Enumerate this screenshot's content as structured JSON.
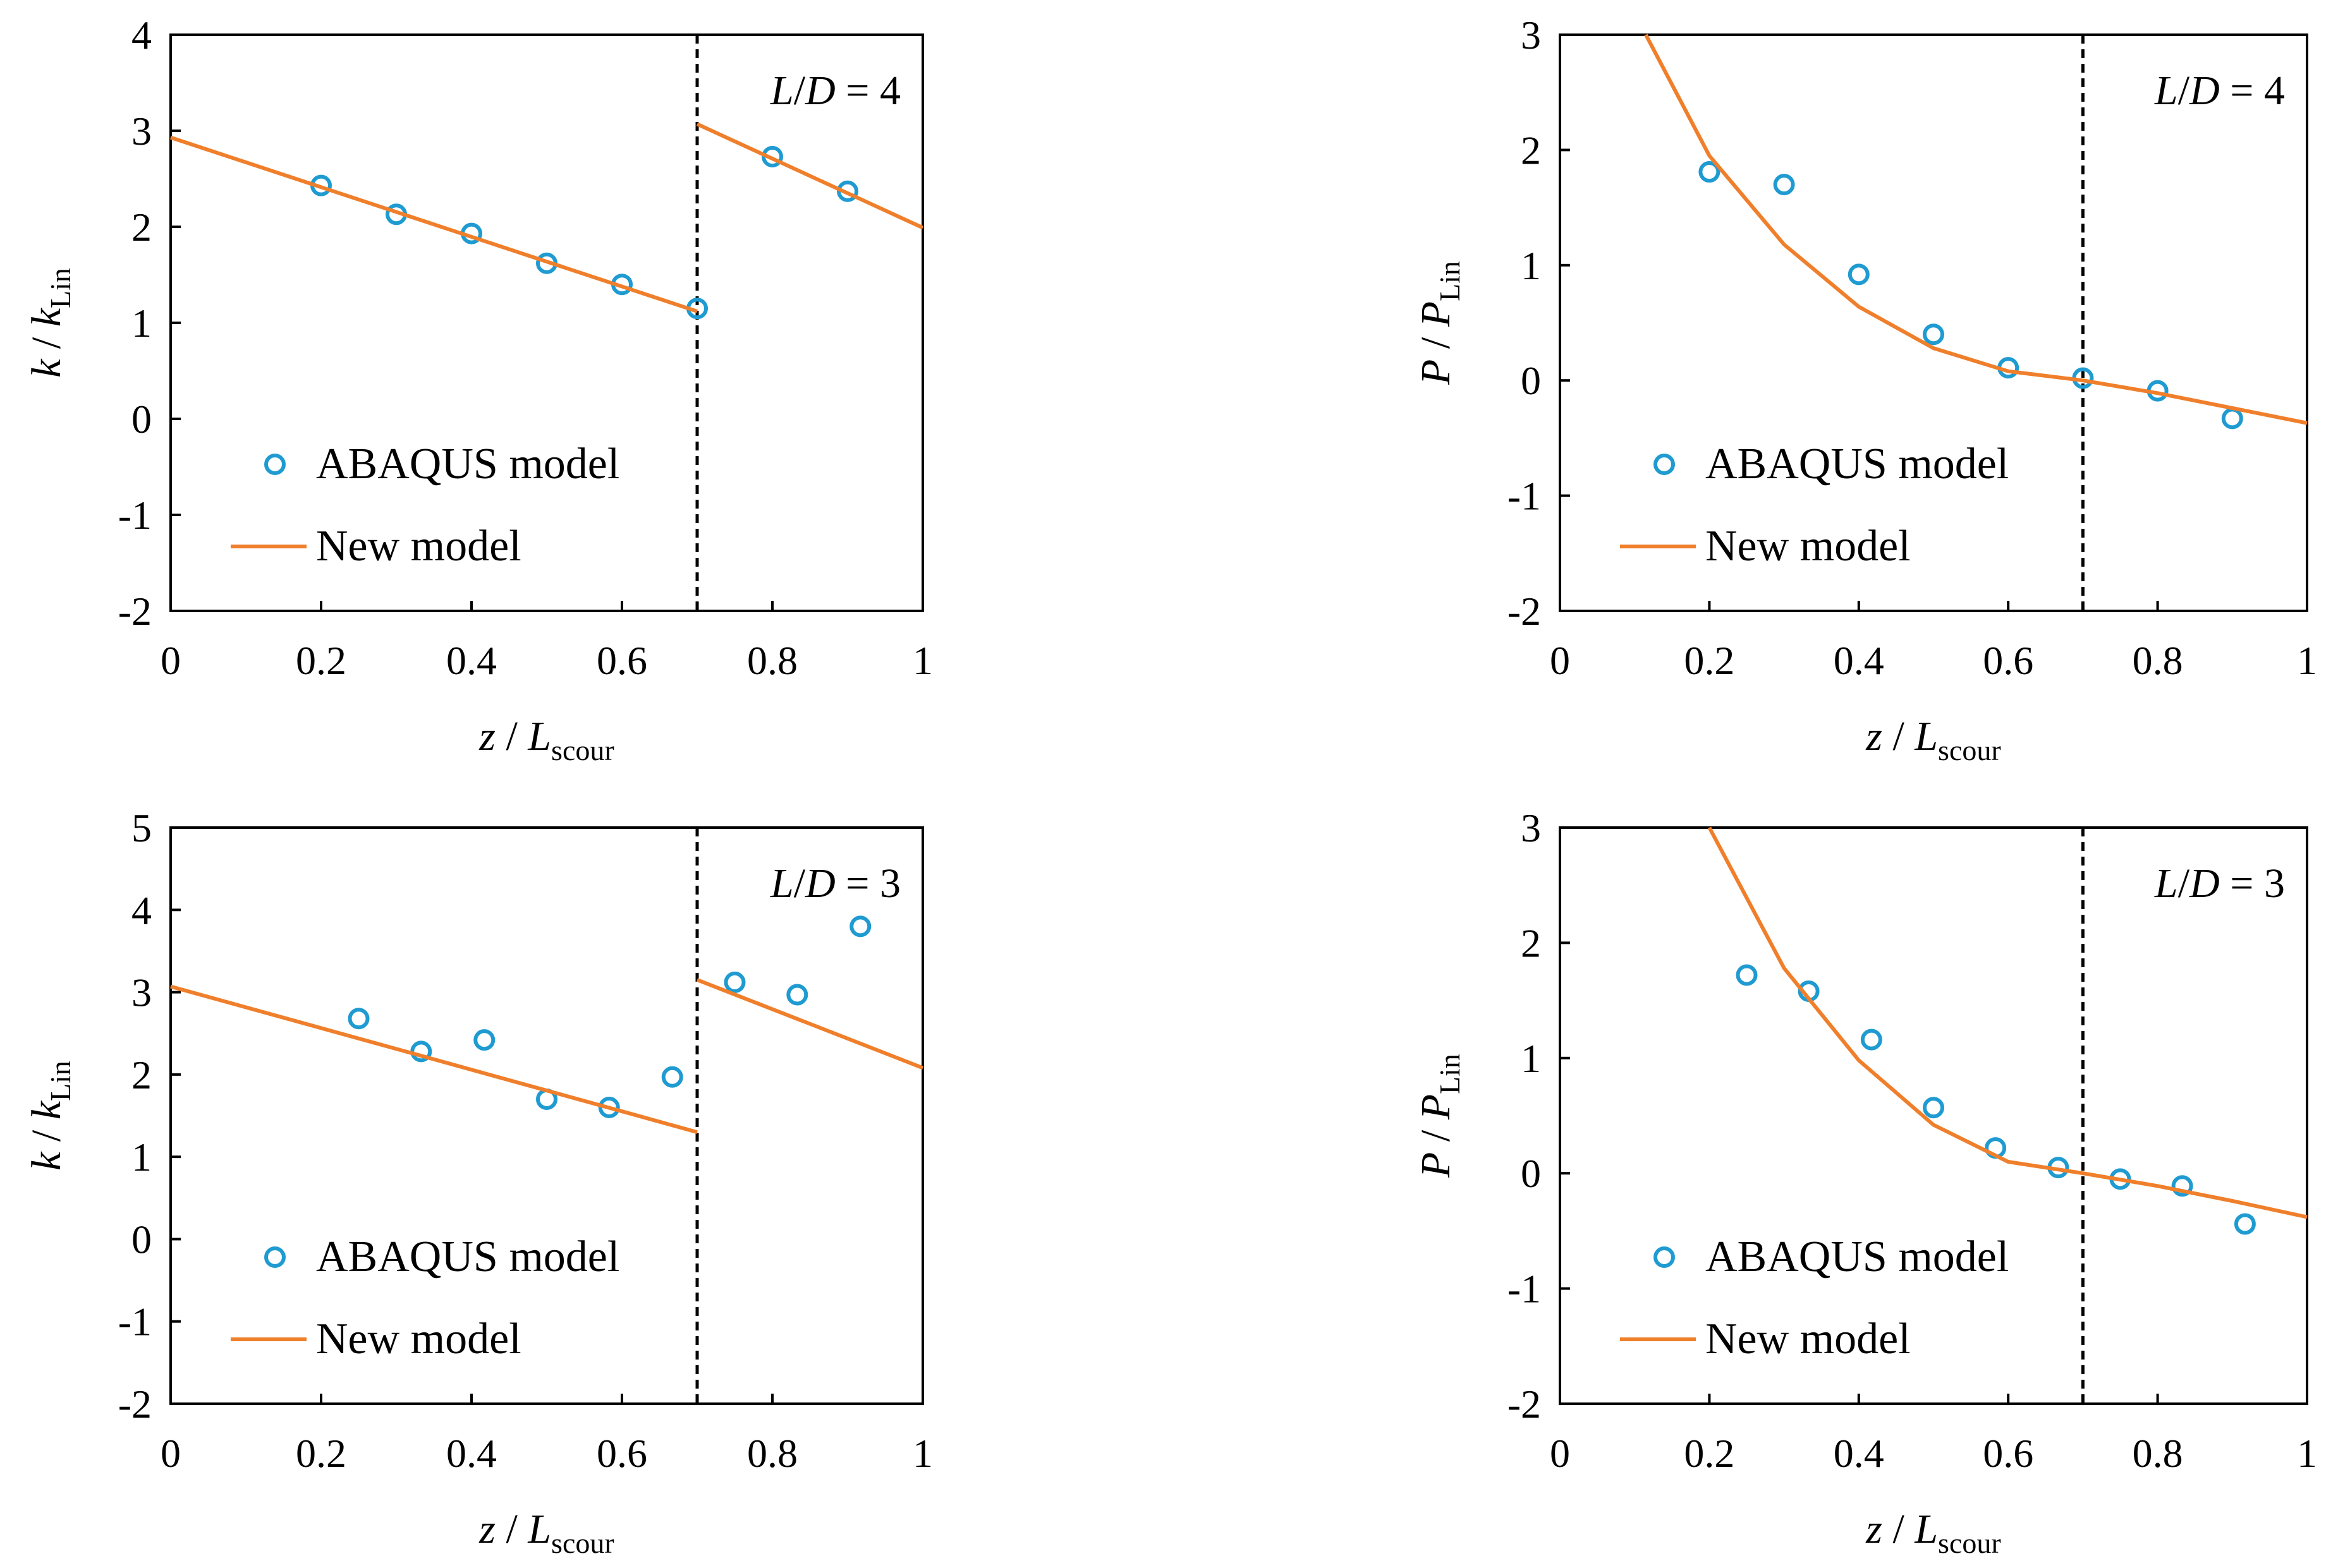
{
  "chart_data": [
    {
      "type": "scatter",
      "annotation": "L/D = 4",
      "annotation_parts": {
        "var1": "L",
        "slash": "/",
        "var2": "D",
        "rest": " = 4"
      },
      "xlabel": {
        "var": "z",
        "sep": " / ",
        "base": "L",
        "sub": "scour"
      },
      "ylabel": {
        "var": "k",
        "sep": " / ",
        "base": "k",
        "sub": "Lin"
      },
      "xlim": [
        0,
        1
      ],
      "ylim": [
        -2,
        4
      ],
      "xticks": [
        0,
        0.2,
        0.4,
        0.6,
        0.8,
        1
      ],
      "xtick_labels": [
        "0",
        "0.2",
        "0.4",
        "0.6",
        "0.8",
        "1"
      ],
      "yticks": [
        -2,
        -1,
        0,
        1,
        2,
        3,
        4
      ],
      "ytick_labels": [
        "-2",
        "-1",
        "0",
        "1",
        "2",
        "3",
        "4"
      ],
      "vline_x": 0.7,
      "legend_position": "bottom-left",
      "series": [
        {
          "name": "ABAQUS model",
          "kind": "marker",
          "color": "#1f9bd1",
          "x": [
            0.2,
            0.3,
            0.4,
            0.5,
            0.6,
            0.7,
            0.8,
            0.9
          ],
          "y": [
            2.43,
            2.13,
            1.93,
            1.62,
            1.4,
            1.15,
            2.73,
            2.37
          ]
        },
        {
          "name": "New model",
          "kind": "line",
          "color": "#f07f2b",
          "segments": [
            {
              "x": [
                0,
                0.7
              ],
              "y": [
                2.93,
                1.12
              ]
            },
            {
              "x": [
                0.7,
                1
              ],
              "y": [
                3.07,
                1.99
              ]
            }
          ]
        }
      ]
    },
    {
      "type": "scatter",
      "annotation": "L/D = 4",
      "annotation_parts": {
        "var1": "L",
        "slash": "/",
        "var2": "D",
        "rest": " = 4"
      },
      "xlabel": {
        "var": "z",
        "sep": " / ",
        "base": "L",
        "sub": "scour"
      },
      "ylabel": {
        "var": "P",
        "sep": " / ",
        "base": "P",
        "sub": "Lin"
      },
      "xlim": [
        0,
        1
      ],
      "ylim": [
        -2,
        3
      ],
      "xticks": [
        0,
        0.2,
        0.4,
        0.6,
        0.8,
        1
      ],
      "xtick_labels": [
        "0",
        "0.2",
        "0.4",
        "0.6",
        "0.8",
        "1"
      ],
      "yticks": [
        -2,
        -1,
        0,
        1,
        2,
        3
      ],
      "ytick_labels": [
        "-2",
        "-1",
        "0",
        "1",
        "2",
        "3"
      ],
      "vline_x": 0.7,
      "legend_position": "bottom-left",
      "series": [
        {
          "name": "ABAQUS model",
          "kind": "marker",
          "color": "#1f9bd1",
          "x": [
            0.2,
            0.3,
            0.4,
            0.5,
            0.6,
            0.7,
            0.8,
            0.9
          ],
          "y": [
            1.81,
            1.7,
            0.92,
            0.4,
            0.11,
            0.02,
            -0.09,
            -0.33
          ]
        },
        {
          "name": "New model",
          "kind": "line",
          "color": "#f07f2b",
          "segments": [
            {
              "x": [
                0.115,
                0.2,
                0.3,
                0.4,
                0.5,
                0.6,
                0.7,
                0.8,
                0.9,
                1.0
              ],
              "y": [
                3.0,
                1.95,
                1.18,
                0.64,
                0.28,
                0.08,
                0.0,
                -0.11,
                -0.24,
                -0.37
              ]
            }
          ]
        }
      ]
    },
    {
      "type": "scatter",
      "annotation": "L/D = 3",
      "annotation_parts": {
        "var1": "L",
        "slash": "/",
        "var2": "D",
        "rest": " = 3"
      },
      "xlabel": {
        "var": "z",
        "sep": " / ",
        "base": "L",
        "sub": "scour"
      },
      "ylabel": {
        "var": "k",
        "sep": " / ",
        "base": "k",
        "sub": "Lin"
      },
      "xlim": [
        0,
        1
      ],
      "ylim": [
        -2,
        5
      ],
      "xticks": [
        0,
        0.2,
        0.4,
        0.6,
        0.8,
        1
      ],
      "xtick_labels": [
        "0",
        "0.2",
        "0.4",
        "0.6",
        "0.8",
        "1"
      ],
      "yticks": [
        -2,
        -1,
        0,
        1,
        2,
        3,
        4,
        5
      ],
      "ytick_labels": [
        "-2",
        "-1",
        "0",
        "1",
        "2",
        "3",
        "4",
        "5"
      ],
      "vline_x": 0.7,
      "legend_position": "bottom-left",
      "series": [
        {
          "name": "ABAQUS model",
          "kind": "marker",
          "color": "#1f9bd1",
          "x": [
            0.25,
            0.333,
            0.417,
            0.5,
            0.583,
            0.667,
            0.75,
            0.833,
            0.917
          ],
          "y": [
            2.68,
            2.28,
            2.42,
            1.7,
            1.6,
            1.97,
            3.12,
            2.97,
            3.8
          ]
        },
        {
          "name": "New model",
          "kind": "line",
          "color": "#f07f2b",
          "segments": [
            {
              "x": [
                0,
                0.7
              ],
              "y": [
                3.07,
                1.3
              ]
            },
            {
              "x": [
                0.7,
                1
              ],
              "y": [
                3.15,
                2.08
              ]
            }
          ]
        }
      ]
    },
    {
      "type": "scatter",
      "annotation": "L/D = 3",
      "annotation_parts": {
        "var1": "L",
        "slash": "/",
        "var2": "D",
        "rest": " = 3"
      },
      "xlabel": {
        "var": "z",
        "sep": " / ",
        "base": "L",
        "sub": "scour"
      },
      "ylabel": {
        "var": "P",
        "sep": " / ",
        "base": "P",
        "sub": "Lin"
      },
      "xlim": [
        0,
        1
      ],
      "ylim": [
        -2,
        3
      ],
      "xticks": [
        0,
        0.2,
        0.4,
        0.6,
        0.8,
        1
      ],
      "xtick_labels": [
        "0",
        "0.2",
        "0.4",
        "0.6",
        "0.8",
        "1"
      ],
      "yticks": [
        -2,
        -1,
        0,
        1,
        2,
        3
      ],
      "ytick_labels": [
        "-2",
        "-1",
        "0",
        "1",
        "2",
        "3"
      ],
      "vline_x": 0.7,
      "legend_position": "bottom-left",
      "series": [
        {
          "name": "ABAQUS model",
          "kind": "marker",
          "color": "#1f9bd1",
          "x": [
            0.25,
            0.333,
            0.417,
            0.5,
            0.583,
            0.667,
            0.75,
            0.833,
            0.917
          ],
          "y": [
            1.72,
            1.58,
            1.16,
            0.57,
            0.22,
            0.05,
            -0.05,
            -0.11,
            -0.44
          ]
        },
        {
          "name": "New model",
          "kind": "line",
          "color": "#f07f2b",
          "segments": [
            {
              "x": [
                0.2,
                0.3,
                0.4,
                0.5,
                0.6,
                0.7,
                0.8,
                0.9,
                1.0
              ],
              "y": [
                3.0,
                1.78,
                0.98,
                0.42,
                0.1,
                0.0,
                -0.11,
                -0.24,
                -0.38
              ]
            }
          ]
        }
      ]
    }
  ]
}
